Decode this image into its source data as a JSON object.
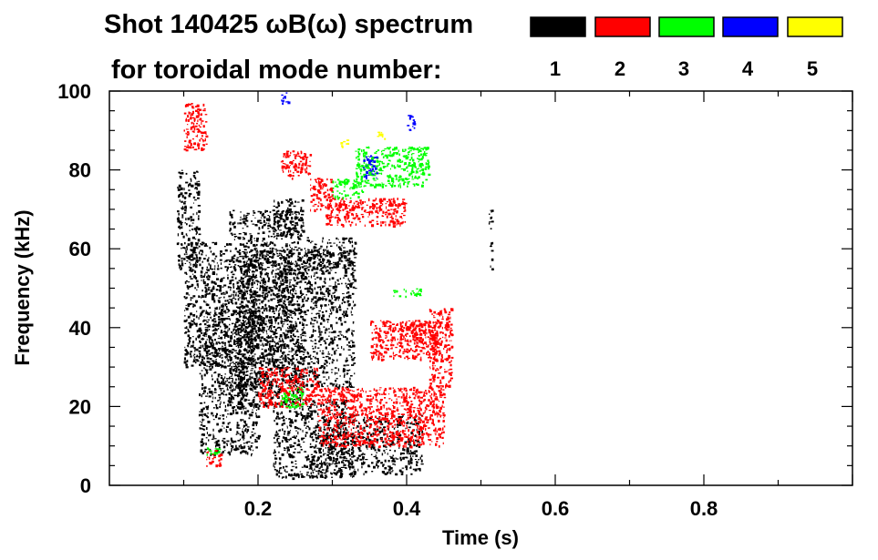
{
  "chart_data": {
    "type": "scatter",
    "title": "Shot 140425 ωB(ω) spectrum",
    "subtitle": "for toroidal mode number:",
    "xlabel": "Time (s)",
    "ylabel": "Frequency (kHz)",
    "xlim": [
      0.0,
      1.0
    ],
    "ylim": [
      0,
      100
    ],
    "x_ticks": [
      "0.2",
      "0.4",
      "0.6",
      "0.8"
    ],
    "x_tick_values": [
      0.2,
      0.4,
      0.6,
      0.8
    ],
    "y_ticks": [
      "0",
      "20",
      "40",
      "60",
      "80",
      "100"
    ],
    "y_tick_values": [
      0,
      20,
      40,
      60,
      80,
      100
    ],
    "legend_placement": "top-right",
    "grid": false,
    "series": [
      {
        "name": "1",
        "color": "#000000",
        "regions": [
          {
            "x": [
              0.09,
              0.12
            ],
            "y": [
              55,
              80
            ]
          },
          {
            "x": [
              0.1,
              0.16
            ],
            "y": [
              30,
              62
            ]
          },
          {
            "x": [
              0.12,
              0.2
            ],
            "y": [
              8,
              45
            ]
          },
          {
            "x": [
              0.16,
              0.26
            ],
            "y": [
              20,
              70
            ]
          },
          {
            "x": [
              0.22,
              0.32
            ],
            "y": [
              2,
              22
            ]
          },
          {
            "x": [
              0.27,
              0.33
            ],
            "y": [
              2,
              15
            ]
          },
          {
            "x": [
              0.32,
              0.42
            ],
            "y": [
              3,
              18
            ]
          },
          {
            "x": [
              0.22,
              0.26
            ],
            "y": [
              63,
              73
            ]
          },
          {
            "x": [
              0.26,
              0.33
            ],
            "y": [
              55,
              63
            ]
          },
          {
            "x": [
              0.17,
              0.33
            ],
            "y": [
              25,
              60
            ]
          },
          {
            "x": [
              0.51,
              0.515
            ],
            "y": [
              55,
              70
            ]
          }
        ]
      },
      {
        "name": "2",
        "color": "#ff0000",
        "regions": [
          {
            "x": [
              0.1,
              0.13
            ],
            "y": [
              85,
              97
            ]
          },
          {
            "x": [
              0.23,
              0.27
            ],
            "y": [
              78,
              85
            ]
          },
          {
            "x": [
              0.27,
              0.3
            ],
            "y": [
              70,
              78
            ]
          },
          {
            "x": [
              0.29,
              0.4
            ],
            "y": [
              66,
              73
            ]
          },
          {
            "x": [
              0.2,
              0.28
            ],
            "y": [
              20,
              30
            ]
          },
          {
            "x": [
              0.28,
              0.45
            ],
            "y": [
              10,
              25
            ]
          },
          {
            "x": [
              0.35,
              0.44
            ],
            "y": [
              32,
              42
            ]
          },
          {
            "x": [
              0.39,
              0.44
            ],
            "y": [
              36,
              42
            ]
          },
          {
            "x": [
              0.43,
              0.46
            ],
            "y": [
              25,
              45
            ]
          },
          {
            "x": [
              0.13,
              0.15
            ],
            "y": [
              5,
              9
            ]
          }
        ]
      },
      {
        "name": "3",
        "color": "#00ff00",
        "regions": [
          {
            "x": [
              0.33,
              0.43
            ],
            "y": [
              76,
              86
            ]
          },
          {
            "x": [
              0.3,
              0.34
            ],
            "y": [
              73,
              78
            ]
          },
          {
            "x": [
              0.38,
              0.42
            ],
            "y": [
              48,
              50
            ]
          },
          {
            "x": [
              0.23,
              0.26
            ],
            "y": [
              20,
              25
            ]
          },
          {
            "x": [
              0.13,
              0.15
            ],
            "y": [
              8,
              10
            ]
          }
        ]
      },
      {
        "name": "4",
        "color": "#0000ff",
        "regions": [
          {
            "x": [
              0.34,
              0.36
            ],
            "y": [
              78,
              84
            ]
          },
          {
            "x": [
              0.4,
              0.41
            ],
            "y": [
              90,
              94
            ]
          },
          {
            "x": [
              0.23,
              0.24
            ],
            "y": [
              97,
              100
            ]
          }
        ]
      },
      {
        "name": "5",
        "color": "#ffff00",
        "regions": [
          {
            "x": [
              0.31,
              0.32
            ],
            "y": [
              86,
              88
            ]
          },
          {
            "x": [
              0.36,
              0.37
            ],
            "y": [
              88,
              90
            ]
          }
        ]
      }
    ]
  }
}
